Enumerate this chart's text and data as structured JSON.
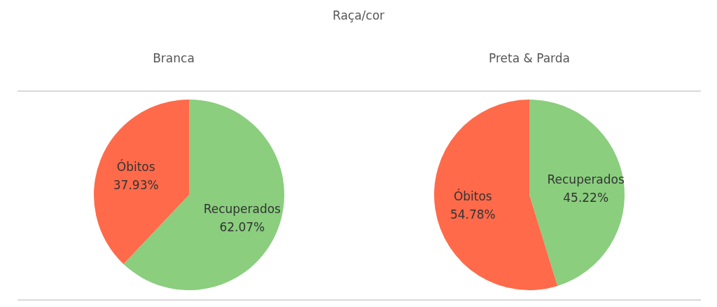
{
  "chart_data": [
    {
      "type": "pie",
      "title": "Raça/cor",
      "subtitle": "Branca",
      "categories": [
        "Recuperados",
        "Óbitos"
      ],
      "values": [
        62.07,
        37.93
      ],
      "colors": [
        "#8ace7e",
        "#ff6a4a"
      ],
      "value_labels": [
        "62.07%",
        "37.93%"
      ]
    },
    {
      "type": "pie",
      "subtitle": "Preta & Parda",
      "categories": [
        "Recuperados",
        "Óbitos"
      ],
      "values": [
        45.22,
        54.78
      ],
      "colors": [
        "#8ace7e",
        "#ff6a4a"
      ],
      "value_labels": [
        "45.22%",
        "54.78%"
      ]
    }
  ]
}
